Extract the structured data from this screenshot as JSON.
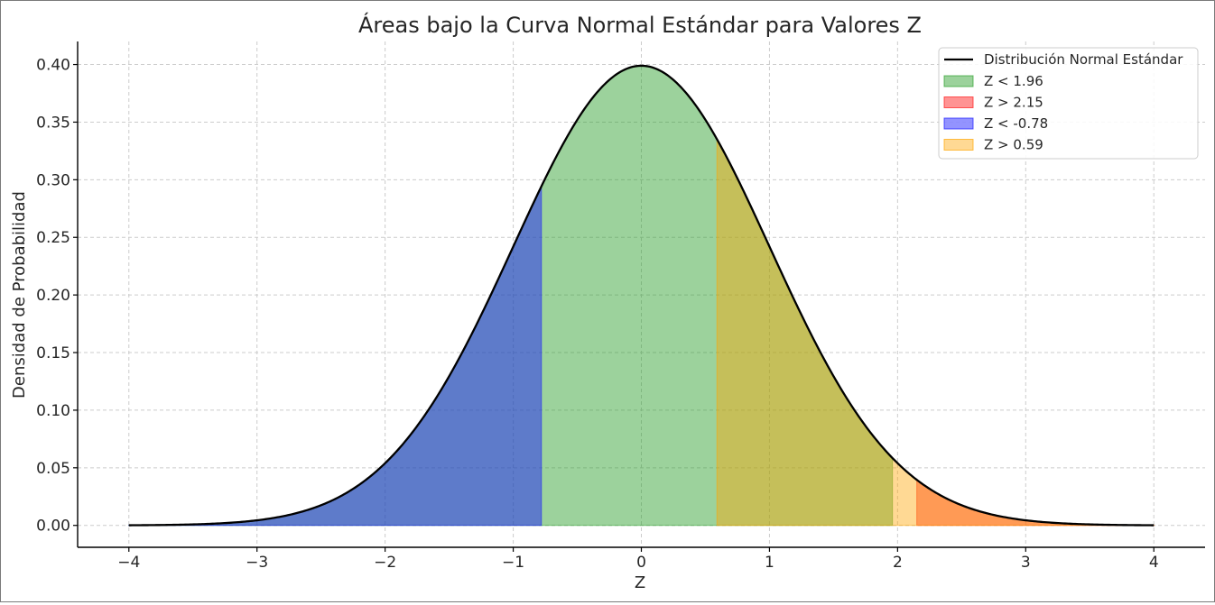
{
  "chart_data": {
    "type": "area",
    "title": "Áreas bajo la Curva Normal Estándar para Valores Z",
    "xlabel": "Z",
    "ylabel": "Densidad de Probabilidad",
    "xlim": [
      -4.4,
      4.4
    ],
    "ylim": [
      -0.019,
      0.42
    ],
    "x_ticks": [
      -4,
      -3,
      -2,
      -1,
      0,
      1,
      2,
      3,
      4
    ],
    "x_tick_labels": [
      "−4",
      "−3",
      "−2",
      "−1",
      "0",
      "1",
      "2",
      "3",
      "4"
    ],
    "y_ticks": [
      0.0,
      0.05,
      0.1,
      0.15,
      0.2,
      0.25,
      0.3,
      0.35,
      0.4
    ],
    "y_tick_labels": [
      "0.00",
      "0.05",
      "0.10",
      "0.15",
      "0.20",
      "0.25",
      "0.30",
      "0.35",
      "0.40"
    ],
    "grid": true,
    "legend_position": "top-right",
    "curve": {
      "name": "Distribución Normal Estándar",
      "function": "standard-normal-pdf",
      "x_range": [
        -4,
        4
      ],
      "color": "#000000"
    },
    "regions": [
      {
        "name": "Z < 1.96",
        "from": -4,
        "to": 1.96,
        "color": "#2ca02c",
        "opacity": 0.47
      },
      {
        "name": "Z > 2.15",
        "from": 2.15,
        "to": 4,
        "color": "#ff1a1a",
        "opacity": 0.47
      },
      {
        "name": "Z < -0.78",
        "from": -4,
        "to": -0.78,
        "color": "#1a1aff",
        "opacity": 0.47
      },
      {
        "name": "Z > 0.59",
        "from": 0.59,
        "to": 4,
        "color": "#ffa500",
        "opacity": 0.42
      }
    ]
  }
}
